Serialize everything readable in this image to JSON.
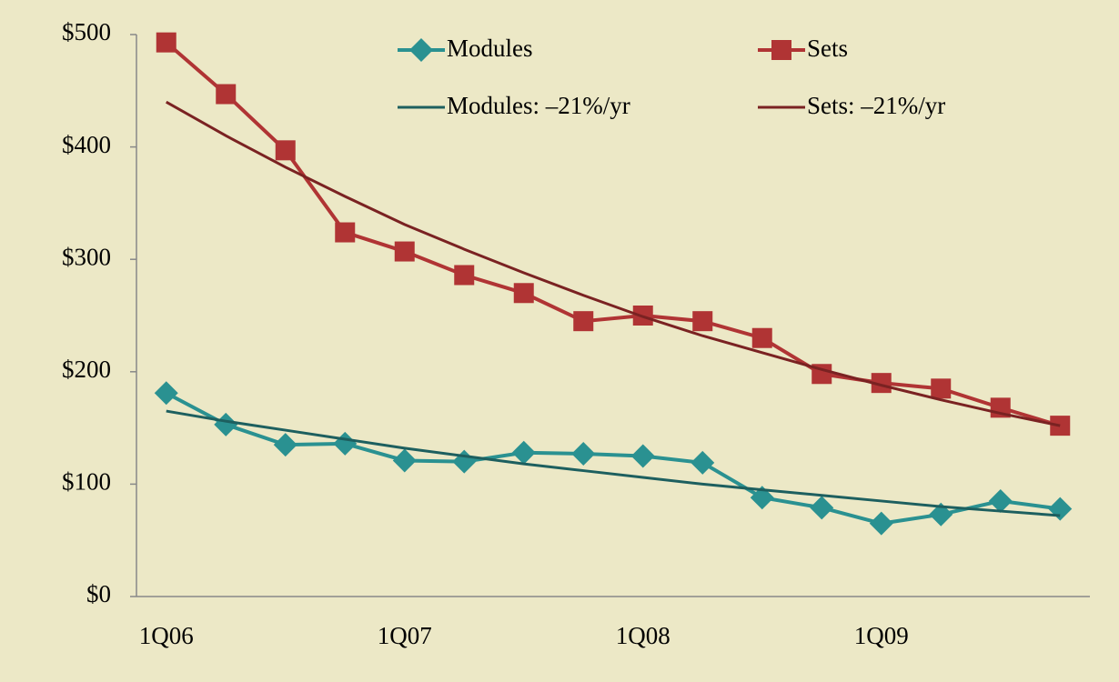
{
  "chart_data": {
    "type": "line",
    "categories": [
      "1Q06",
      null,
      null,
      null,
      "1Q07",
      null,
      null,
      null,
      "1Q08",
      null,
      null,
      null,
      "1Q09",
      null,
      null,
      null
    ],
    "ylim": [
      0,
      500
    ],
    "yticks": [
      {
        "value": 0,
        "label": "$0"
      },
      {
        "value": 100,
        "label": "$100"
      },
      {
        "value": 200,
        "label": "$200"
      },
      {
        "value": 300,
        "label": "$300"
      },
      {
        "value": 400,
        "label": "$400"
      },
      {
        "value": 500,
        "label": "$500"
      }
    ],
    "series": [
      {
        "name": "Modules",
        "color": "#2a9191",
        "marker": "diamond",
        "values": [
          181,
          153,
          135,
          136,
          121,
          120,
          128,
          127,
          125,
          119,
          88,
          79,
          65,
          73,
          85,
          78
        ]
      },
      {
        "name": "Sets",
        "color": "#b03434",
        "marker": "square",
        "values": [
          493,
          447,
          397,
          324,
          307,
          286,
          270,
          245,
          250,
          245,
          230,
          198,
          190,
          185,
          168,
          152
        ]
      },
      {
        "name": "Modules: –21%/yr",
        "color": "#1d5f5f",
        "marker": "none",
        "values": [
          165,
          156,
          148,
          140,
          132,
          125,
          118,
          112,
          106,
          100,
          95,
          90,
          85,
          80,
          76,
          72
        ]
      },
      {
        "name": "Sets: –21%/yr",
        "color": "#7a2222",
        "marker": "none",
        "values": [
          440,
          410,
          382,
          356,
          331,
          309,
          288,
          268,
          249,
          232,
          217,
          202,
          188,
          175,
          163,
          152
        ]
      }
    ]
  }
}
